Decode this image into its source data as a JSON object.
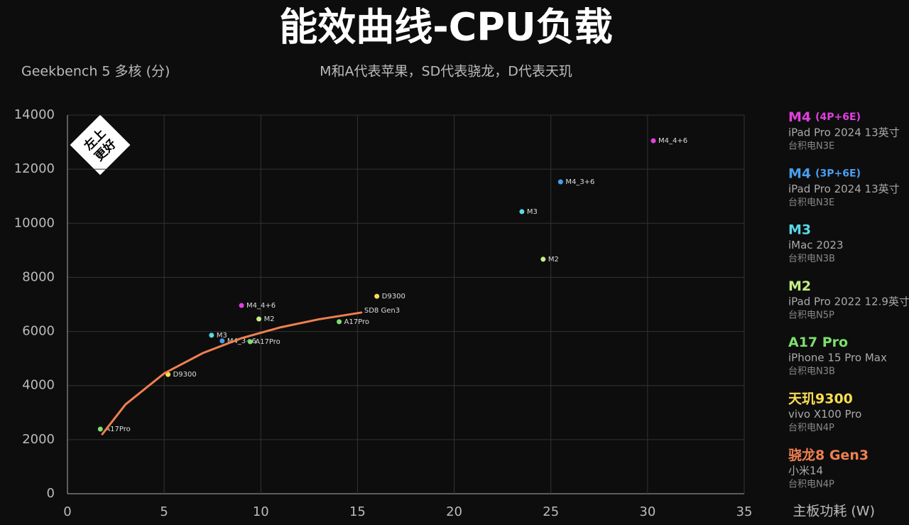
{
  "chart_data": {
    "type": "scatter",
    "title": "能效曲线-CPU负载",
    "y_label": "Geekbench 5 多核 (分)",
    "subtitle": "M和A代表苹果，SD代表骁龙，D代表天玑",
    "x_label": "主板功耗 (W)",
    "badge": [
      "左上",
      "更好"
    ],
    "xlim": [
      0,
      35
    ],
    "xticks": [
      0,
      5,
      10,
      15,
      20,
      25,
      30,
      35
    ],
    "ylim": [
      0,
      14000
    ],
    "yticks": [
      0,
      2000,
      4000,
      6000,
      8000,
      10000,
      12000,
      14000
    ],
    "grid": true,
    "series": [
      {
        "name": "M4",
        "config": "(4P+6E)",
        "device": "iPad Pro 2024 13英寸",
        "process": "台积电N3E",
        "color": "#e040e0",
        "mode": "points",
        "x": [
          30.3,
          9.0
        ],
        "values": [
          13050,
          6960
        ],
        "point_labels": [
          "M4_4+6",
          "M4_4+6"
        ]
      },
      {
        "name": "M4",
        "config": "(3P+6E)",
        "device": "iPad Pro 2024 13英寸",
        "process": "台积电N3E",
        "color": "#4a9ef0",
        "mode": "points",
        "x": [
          25.5,
          8.0
        ],
        "values": [
          11530,
          5650
        ],
        "point_labels": [
          "M4_3+6",
          "M4_3+6"
        ]
      },
      {
        "name": "M3",
        "device": "iMac 2023",
        "process": "台积电N3B",
        "color": "#5ad8e6",
        "mode": "points",
        "x": [
          23.5,
          7.45
        ],
        "values": [
          10430,
          5860
        ],
        "point_labels": [
          "M3",
          "M3"
        ]
      },
      {
        "name": "M2",
        "device": "iPad Pro 2022 12.9英寸",
        "process": "台积电N5P",
        "color": "#c6ee84",
        "mode": "points",
        "x": [
          24.6,
          9.9
        ],
        "values": [
          8670,
          6460
        ],
        "point_labels": [
          "M2",
          "M2"
        ]
      },
      {
        "name": "A17 Pro",
        "device": "iPhone 15 Pro Max",
        "process": "台积电N3B",
        "color": "#7ce06c",
        "mode": "points",
        "x": [
          1.7,
          14.05,
          9.45
        ],
        "values": [
          2390,
          6360,
          5620
        ],
        "point_labels": [
          "A17Pro",
          "A17Pro",
          "A17Pro"
        ]
      },
      {
        "name": "天玑9300",
        "device": "vivo X100 Pro",
        "process": "台积电N4P",
        "color": "#f8dc50",
        "mode": "points",
        "x": [
          5.2,
          16.0
        ],
        "values": [
          4410,
          7300
        ],
        "point_labels": [
          "D9300",
          "D9300"
        ]
      },
      {
        "name": "骁龙8 Gen3",
        "device": "小米14",
        "process": "台积电N4P",
        "color": "#f08050",
        "mode": "line",
        "x": [
          1.8,
          3,
          5,
          7,
          9,
          11,
          13,
          15.2
        ],
        "values": [
          2200,
          3300,
          4450,
          5200,
          5750,
          6150,
          6450,
          6700
        ],
        "end_label": "SD8 Gen3"
      }
    ]
  }
}
